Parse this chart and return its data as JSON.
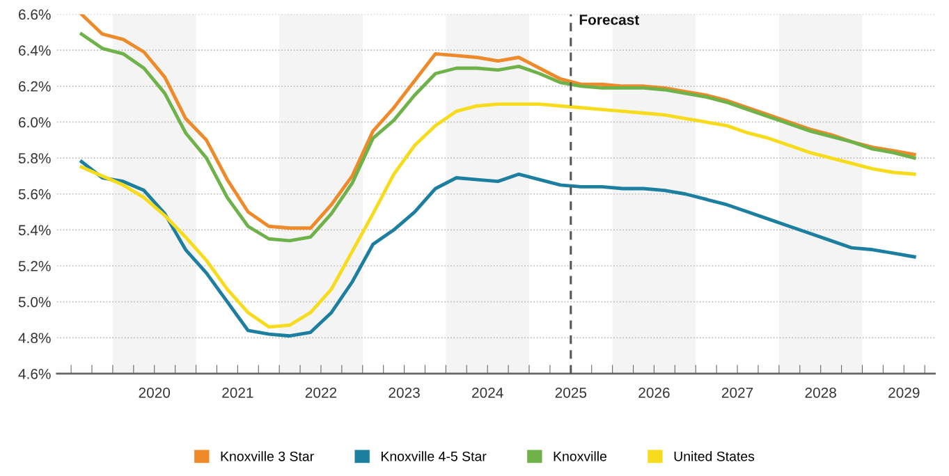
{
  "chart_data": {
    "type": "line",
    "x": [
      2019.625,
      2019.875,
      2020.125,
      2020.375,
      2020.625,
      2020.875,
      2021.125,
      2021.375,
      2021.625,
      2021.875,
      2022.125,
      2022.375,
      2022.625,
      2022.875,
      2023.125,
      2023.375,
      2023.625,
      2023.875,
      2024.125,
      2024.375,
      2024.625,
      2024.875,
      2025.125,
      2025.375,
      2025.625,
      2025.875,
      2026.125,
      2026.375,
      2026.625,
      2026.875,
      2027.125,
      2027.375,
      2027.625,
      2027.875,
      2028.125,
      2028.375,
      2028.625,
      2028.875,
      2029.125,
      2029.375,
      2029.625
    ],
    "series": [
      {
        "name": "Knoxville 3 Star",
        "color": "#ee8a2a",
        "values": [
          6.6,
          6.49,
          6.46,
          6.39,
          6.25,
          6.02,
          5.9,
          5.68,
          5.5,
          5.42,
          5.41,
          5.41,
          5.54,
          5.7,
          5.95,
          6.08,
          6.23,
          6.38,
          6.37,
          6.36,
          6.34,
          6.36,
          6.3,
          6.24,
          6.21,
          6.21,
          6.2,
          6.2,
          6.19,
          6.17,
          6.15,
          6.12,
          6.08,
          6.04,
          6.0,
          5.96,
          5.93,
          5.89,
          5.86,
          5.84,
          5.82
        ]
      },
      {
        "name": "Knoxville 4-5 Star",
        "color": "#1d7fa0",
        "values": [
          5.78,
          5.69,
          5.67,
          5.62,
          5.49,
          5.29,
          5.16,
          5.0,
          4.84,
          4.82,
          4.81,
          4.83,
          4.94,
          5.11,
          5.32,
          5.4,
          5.5,
          5.63,
          5.69,
          5.68,
          5.67,
          5.71,
          5.68,
          5.65,
          5.64,
          5.64,
          5.63,
          5.63,
          5.62,
          5.6,
          5.57,
          5.54,
          5.5,
          5.46,
          5.42,
          5.38,
          5.34,
          5.3,
          5.29,
          5.27,
          5.25
        ]
      },
      {
        "name": "Knoxville",
        "color": "#6fb24a",
        "values": [
          6.49,
          6.41,
          6.38,
          6.3,
          6.16,
          5.94,
          5.8,
          5.58,
          5.42,
          5.35,
          5.34,
          5.36,
          5.49,
          5.66,
          5.91,
          6.01,
          6.15,
          6.27,
          6.3,
          6.3,
          6.29,
          6.31,
          6.27,
          6.22,
          6.2,
          6.19,
          6.19,
          6.19,
          6.18,
          6.16,
          6.14,
          6.11,
          6.07,
          6.03,
          5.99,
          5.95,
          5.92,
          5.89,
          5.85,
          5.83,
          5.8
        ]
      },
      {
        "name": "United States",
        "color": "#f7dc1e",
        "values": [
          5.75,
          5.7,
          5.65,
          5.58,
          5.48,
          5.36,
          5.23,
          5.07,
          4.94,
          4.86,
          4.87,
          4.94,
          5.07,
          5.28,
          5.49,
          5.71,
          5.87,
          5.98,
          6.06,
          6.09,
          6.1,
          6.1,
          6.1,
          6.09,
          6.08,
          6.07,
          6.06,
          6.05,
          6.04,
          6.02,
          6.0,
          5.98,
          5.94,
          5.91,
          5.87,
          5.83,
          5.8,
          5.77,
          5.74,
          5.72,
          5.71
        ]
      }
    ],
    "xlim": [
      2019.33,
      2029.87
    ],
    "xticks": [
      {
        "value": 2019.5,
        "label": null
      },
      {
        "value": 2019.75,
        "label": null
      },
      {
        "value": 2020,
        "label": null
      },
      {
        "value": 2020.25,
        "label": null
      },
      {
        "value": 2020.5,
        "label": "2020"
      },
      {
        "value": 2020.75,
        "label": null
      },
      {
        "value": 2021,
        "label": null
      },
      {
        "value": 2021.25,
        "label": null
      },
      {
        "value": 2021.5,
        "label": "2021"
      },
      {
        "value": 2021.75,
        "label": null
      },
      {
        "value": 2022,
        "label": null
      },
      {
        "value": 2022.25,
        "label": null
      },
      {
        "value": 2022.5,
        "label": "2022"
      },
      {
        "value": 2022.75,
        "label": null
      },
      {
        "value": 2023,
        "label": null
      },
      {
        "value": 2023.25,
        "label": null
      },
      {
        "value": 2023.5,
        "label": "2023"
      },
      {
        "value": 2023.75,
        "label": null
      },
      {
        "value": 2024,
        "label": null
      },
      {
        "value": 2024.25,
        "label": null
      },
      {
        "value": 2024.5,
        "label": "2024"
      },
      {
        "value": 2024.75,
        "label": null
      },
      {
        "value": 2025,
        "label": null
      },
      {
        "value": 2025.25,
        "label": null
      },
      {
        "value": 2025.5,
        "label": "2025"
      },
      {
        "value": 2025.75,
        "label": null
      },
      {
        "value": 2026,
        "label": null
      },
      {
        "value": 2026.25,
        "label": null
      },
      {
        "value": 2026.5,
        "label": "2026"
      },
      {
        "value": 2026.75,
        "label": null
      },
      {
        "value": 2027,
        "label": null
      },
      {
        "value": 2027.25,
        "label": null
      },
      {
        "value": 2027.5,
        "label": "2027"
      },
      {
        "value": 2027.75,
        "label": null
      },
      {
        "value": 2028,
        "label": null
      },
      {
        "value": 2028.25,
        "label": null
      },
      {
        "value": 2028.5,
        "label": "2028"
      },
      {
        "value": 2028.75,
        "label": null
      },
      {
        "value": 2029,
        "label": null
      },
      {
        "value": 2029.25,
        "label": null
      },
      {
        "value": 2029.5,
        "label": "2029"
      },
      {
        "value": 2029.75,
        "label": null
      }
    ],
    "ylim": [
      4.6,
      6.6
    ],
    "yticks": [
      {
        "value": 4.6,
        "label": "4.6%"
      },
      {
        "value": 4.8,
        "label": "4.8%"
      },
      {
        "value": 5.0,
        "label": "5.0%"
      },
      {
        "value": 5.2,
        "label": "5.2%"
      },
      {
        "value": 5.4,
        "label": "5.4%"
      },
      {
        "value": 5.6,
        "label": "5.6%"
      },
      {
        "value": 5.8,
        "label": "5.8%"
      },
      {
        "value": 6.0,
        "label": "6.0%"
      },
      {
        "value": 6.2,
        "label": "6.2%"
      },
      {
        "value": 6.4,
        "label": "6.4%"
      },
      {
        "value": 6.6,
        "label": "6.6%"
      }
    ],
    "bands": [
      {
        "axis": "x",
        "from": 2020,
        "to": 2021,
        "label": null,
        "color": "#f4f4f4"
      },
      {
        "axis": "x",
        "from": 2022,
        "to": 2023,
        "label": null,
        "color": "#f4f4f4"
      },
      {
        "axis": "x",
        "from": 2024,
        "to": 2025,
        "label": null,
        "color": "#f4f4f4"
      },
      {
        "axis": "x",
        "from": 2026,
        "to": 2027,
        "label": null,
        "color": "#f4f4f4"
      },
      {
        "axis": "x",
        "from": 2028,
        "to": 2029,
        "label": null,
        "color": "#f4f4f4"
      }
    ],
    "ref_lines": [
      {
        "axis": "x",
        "value": 2025.5,
        "label": "Forecast",
        "color": "#555555",
        "line_style": "dashed"
      }
    ],
    "grid": "y",
    "legend": "bottom",
    "marker": "none",
    "line_style": "solid"
  }
}
